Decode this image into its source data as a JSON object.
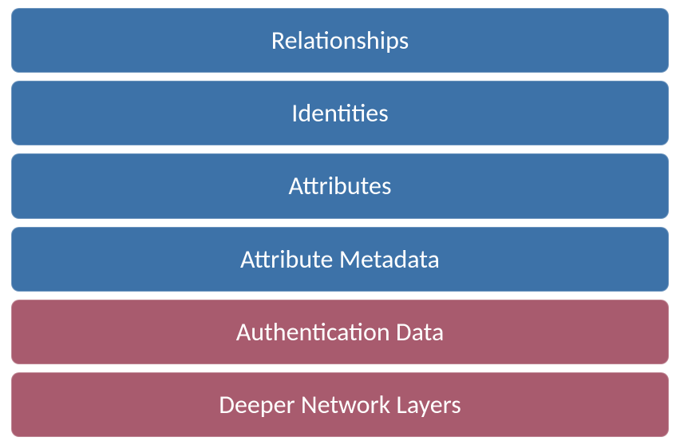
{
  "diagram": {
    "type": "stacked-layers",
    "background_color": "#ffffff",
    "layer_font_size": 32,
    "layer_text_color": "#ffffff",
    "layer_border_radius": 10,
    "layer_gap": 10,
    "layers": [
      {
        "label": "Relationships",
        "fill_color": "#3d72a8"
      },
      {
        "label": "Identities",
        "fill_color": "#3d72a8"
      },
      {
        "label": "Attributes",
        "fill_color": "#3d72a8"
      },
      {
        "label": "Attribute Metadata",
        "fill_color": "#3d72a8"
      },
      {
        "label": "Authentication Data",
        "fill_color": "#a85b6e"
      },
      {
        "label": "Deeper Network Layers",
        "fill_color": "#a85b6e"
      }
    ]
  }
}
